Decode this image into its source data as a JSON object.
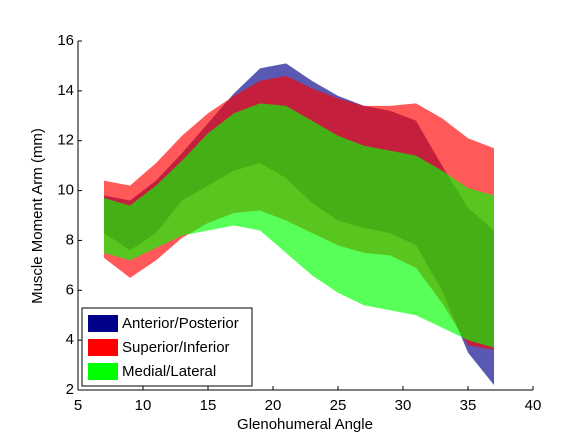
{
  "chart_data": {
    "type": "band",
    "xlabel": "Glenohumeral Angle",
    "ylabel": "Muscle Moment Arm (mm)",
    "x": [
      7,
      9,
      11,
      13,
      15,
      17,
      19,
      21,
      23,
      25,
      27,
      29,
      31,
      33,
      35,
      37
    ],
    "series": [
      {
        "name": "Anterior/Posterior",
        "color": "#00008b",
        "upper": [
          9.8,
          9.6,
          10.4,
          11.5,
          12.7,
          13.9,
          14.9,
          15.1,
          14.4,
          13.8,
          13.4,
          13.2,
          12.8,
          11,
          9.3,
          8.4
        ],
        "lower": [
          8.3,
          7.6,
          8.3,
          9.6,
          10.2,
          10.8,
          11.1,
          10.5,
          9.5,
          8.8,
          8.5,
          8.3,
          7.8,
          6,
          3.5,
          2.2
        ]
      },
      {
        "name": "Superior/Inferior",
        "color": "#ff0000",
        "upper": [
          10.4,
          10.2,
          11.1,
          12.2,
          13.1,
          13.8,
          14.4,
          14.6,
          14.1,
          13.7,
          13.4,
          13.4,
          13.5,
          12.9,
          12.1,
          11.7
        ],
        "lower": [
          7.3,
          6.5,
          7.2,
          8.1,
          8.7,
          9.1,
          9.2,
          8.8,
          8.3,
          7.8,
          7.5,
          7.4,
          6.9,
          5.5,
          3.8,
          3.6
        ]
      },
      {
        "name": "Medial/Lateral",
        "color": "#00ff00",
        "upper": [
          9.7,
          9.4,
          10.2,
          11.2,
          12.3,
          13.1,
          13.5,
          13.4,
          12.8,
          12.2,
          11.8,
          11.6,
          11.4,
          10.8,
          10.1,
          9.8
        ],
        "lower": [
          7.5,
          7.2,
          7.7,
          8.2,
          8.4,
          8.6,
          8.4,
          7.5,
          6.6,
          5.9,
          5.4,
          5.2,
          5.0,
          4.5,
          4.0,
          3.7
        ]
      }
    ],
    "xlim": [
      5,
      40
    ],
    "xticks": [
      5,
      10,
      15,
      20,
      25,
      30,
      35,
      40
    ],
    "ylim": [
      2,
      16
    ],
    "yticks": [
      2,
      4,
      6,
      8,
      10,
      12,
      14,
      16
    ],
    "legend": "lower left"
  }
}
